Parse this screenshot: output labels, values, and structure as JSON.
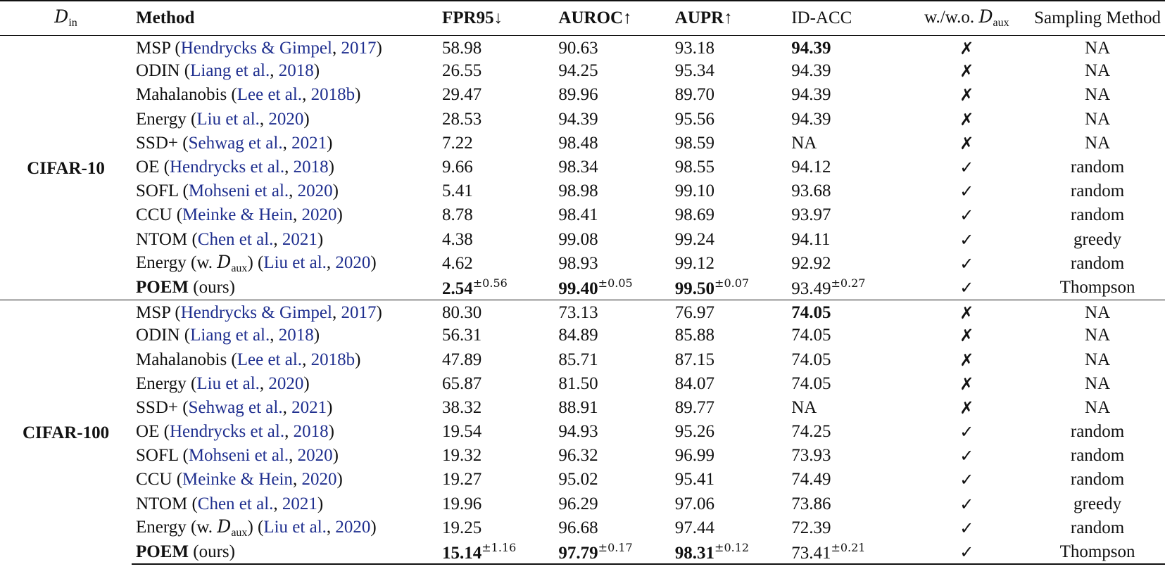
{
  "header": {
    "din_symbol": "D",
    "din_sub": "in",
    "method": "Method",
    "fpr": "FPR95↓",
    "auroc": "AUROC↑",
    "aupr": "AUPR↑",
    "acc": "ID-ACC",
    "aux_prefix": "w./w.o. ",
    "aux_symbol": "D",
    "aux_sub": "aux",
    "sampling": "Sampling Method"
  },
  "groups": [
    {
      "dataset": "CIFAR-10",
      "rows": [
        {
          "name": "MSP",
          "cite": "Hendrycks & Gimpel",
          "year": "2017",
          "fpr": "58.98",
          "auroc": "90.63",
          "aupr": "93.18",
          "acc": "94.39",
          "acc_bold": true,
          "aux": "✗",
          "sampling": "NA"
        },
        {
          "name": "ODIN",
          "cite": "Liang et al.",
          "year": "2018",
          "fpr": "26.55",
          "auroc": "94.25",
          "aupr": "95.34",
          "acc": "94.39",
          "aux": "✗",
          "sampling": "NA"
        },
        {
          "name": "Mahalanobis",
          "cite": "Lee et al.",
          "year": "2018b",
          "fpr": "29.47",
          "auroc": "89.96",
          "aupr": "89.70",
          "acc": "94.39",
          "aux": "✗",
          "sampling": "NA"
        },
        {
          "name": "Energy",
          "cite": "Liu et al.",
          "year": "2020",
          "fpr": "28.53",
          "auroc": "94.39",
          "aupr": "95.56",
          "acc": "94.39",
          "aux": "✗",
          "sampling": "NA"
        },
        {
          "name": "SSD+",
          "cite": "Sehwag et al.",
          "year": "2021",
          "fpr": "7.22",
          "auroc": "98.48",
          "aupr": "98.59",
          "acc": "NA",
          "aux": "✗",
          "sampling": "NA"
        },
        {
          "name": "OE",
          "cite": "Hendrycks et al.",
          "year": "2018",
          "fpr": "9.66",
          "auroc": "98.34",
          "aupr": "98.55",
          "acc": "94.12",
          "aux": "✓",
          "sampling": "random"
        },
        {
          "name": "SOFL",
          "cite": "Mohseni et al.",
          "year": "2020",
          "fpr": "5.41",
          "auroc": "98.98",
          "aupr": "99.10",
          "acc": "93.68",
          "aux": "✓",
          "sampling": "random"
        },
        {
          "name": "CCU",
          "cite": "Meinke & Hein",
          "year": "2020",
          "fpr": "8.78",
          "auroc": "98.41",
          "aupr": "98.69",
          "acc": "93.97",
          "aux": "✓",
          "sampling": "random"
        },
        {
          "name": "NTOM",
          "cite": "Chen et al.",
          "year": "2021",
          "fpr": "4.38",
          "auroc": "99.08",
          "aupr": "99.24",
          "acc": "94.11",
          "aux": "✓",
          "sampling": "greedy"
        },
        {
          "name": "Energy (w. ",
          "name_sym": "D",
          "name_sub": "aux",
          "name_tail": ")",
          "cite": "Liu et al.",
          "year": "2020",
          "fpr": "4.62",
          "auroc": "98.93",
          "aupr": "99.12",
          "acc": "92.92",
          "aux": "✓",
          "sampling": "random"
        },
        {
          "name": "POEM",
          "name_bold": true,
          "ours": "(ours)",
          "fpr": "2.54",
          "fpr_pm": "±0.56",
          "auroc": "99.40",
          "auroc_pm": "±0.05",
          "aupr": "99.50",
          "aupr_pm": "±0.07",
          "acc": "93.49",
          "acc_pm": "±0.27",
          "metrics_bold": true,
          "aux": "✓",
          "sampling": "Thompson"
        }
      ]
    },
    {
      "dataset": "CIFAR-100",
      "rows": [
        {
          "name": "MSP",
          "cite": "Hendrycks & Gimpel",
          "year": "2017",
          "fpr": "80.30",
          "auroc": "73.13",
          "aupr": "76.97",
          "acc": "74.05",
          "acc_bold": true,
          "aux": "✗",
          "sampling": "NA"
        },
        {
          "name": "ODIN",
          "cite": "Liang et al.",
          "year": "2018",
          "fpr": "56.31",
          "auroc": "84.89",
          "aupr": "85.88",
          "acc": "74.05",
          "aux": "✗",
          "sampling": "NA"
        },
        {
          "name": "Mahalanobis",
          "cite": "Lee et al.",
          "year": "2018b",
          "fpr": "47.89",
          "auroc": "85.71",
          "aupr": "87.15",
          "acc": "74.05",
          "aux": "✗",
          "sampling": "NA"
        },
        {
          "name": "Energy",
          "cite": "Liu et al.",
          "year": "2020",
          "fpr": "65.87",
          "auroc": "81.50",
          "aupr": "84.07",
          "acc": "74.05",
          "aux": "✗",
          "sampling": "NA"
        },
        {
          "name": "SSD+",
          "cite": "Sehwag et al.",
          "year": "2021",
          "fpr": "38.32",
          "auroc": "88.91",
          "aupr": "89.77",
          "acc": "NA",
          "aux": "✗",
          "sampling": "NA"
        },
        {
          "name": "OE",
          "cite": "Hendrycks et al.",
          "year": "2018",
          "fpr": "19.54",
          "auroc": "94.93",
          "aupr": "95.26",
          "acc": "74.25",
          "aux": "✓",
          "sampling": "random"
        },
        {
          "name": "SOFL",
          "cite": "Mohseni et al.",
          "year": "2020",
          "fpr": "19.32",
          "auroc": "96.32",
          "aupr": "96.99",
          "acc": "73.93",
          "aux": "✓",
          "sampling": "random"
        },
        {
          "name": "CCU",
          "cite": "Meinke & Hein",
          "year": "2020",
          "fpr": "19.27",
          "auroc": "95.02",
          "aupr": "95.41",
          "acc": "74.49",
          "aux": "✓",
          "sampling": "random"
        },
        {
          "name": "NTOM",
          "cite": "Chen et al.",
          "year": "2021",
          "fpr": "19.96",
          "auroc": "96.29",
          "aupr": "97.06",
          "acc": "73.86",
          "aux": "✓",
          "sampling": "greedy"
        },
        {
          "name": "Energy (w. ",
          "name_sym": "D",
          "name_sub": "aux",
          "name_tail": ")",
          "cite": "Liu et al.",
          "year": "2020",
          "fpr": "19.25",
          "auroc": "96.68",
          "aupr": "97.44",
          "acc": "72.39",
          "aux": "✓",
          "sampling": "random"
        },
        {
          "name": "POEM",
          "name_bold": true,
          "ours": "(ours)",
          "fpr": "15.14",
          "fpr_pm": "±1.16",
          "auroc": "97.79",
          "auroc_pm": "±0.17",
          "aupr": "98.31",
          "aupr_pm": "±0.12",
          "acc": "73.41",
          "acc_pm": "±0.21",
          "metrics_bold": true,
          "aux": "✓",
          "sampling": "Thompson"
        }
      ]
    }
  ]
}
